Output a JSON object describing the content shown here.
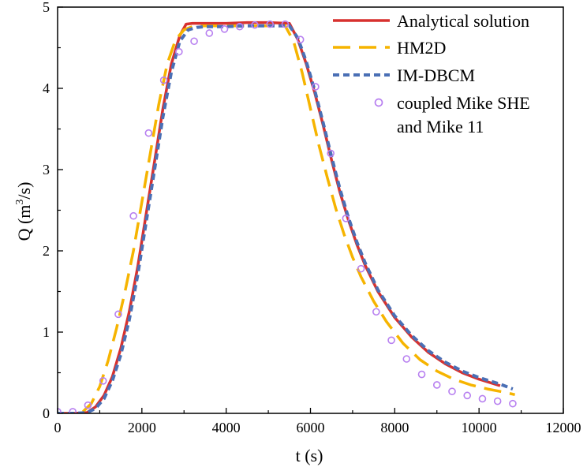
{
  "chart_data": {
    "type": "line",
    "xlabel": "t (s)",
    "ylabel_parts": {
      "base": "Q (m",
      "sup": "3",
      "tail": "/s)"
    },
    "xlim": [
      0,
      12000
    ],
    "ylim": [
      0,
      5
    ],
    "xticks": [
      0,
      2000,
      4000,
      6000,
      8000,
      10000,
      12000
    ],
    "yticks": [
      0,
      1,
      2,
      3,
      4,
      5
    ],
    "xtick_labels": [
      "0",
      "2000",
      "4000",
      "6000",
      "8000",
      "10000",
      "12000"
    ],
    "ytick_labels": [
      "0",
      "1",
      "2",
      "3",
      "4",
      "5"
    ],
    "grid": false,
    "legend_position": "top-right",
    "series": [
      {
        "name": "Analytical solution",
        "style": "solid",
        "color": "#d7312f",
        "x": [
          0,
          400,
          700,
          900,
          1100,
          1300,
          1500,
          1700,
          1900,
          2100,
          2300,
          2500,
          2700,
          2900,
          3050,
          3200,
          3500,
          4000,
          4500,
          5000,
          5500,
          5700,
          5900,
          6100,
          6300,
          6500,
          6700,
          6900,
          7100,
          7300,
          7600,
          8000,
          8400,
          8800,
          9200,
          9600,
          10000,
          10500
        ],
        "y": [
          0,
          0,
          0.01,
          0.08,
          0.22,
          0.45,
          0.8,
          1.25,
          1.8,
          2.45,
          3.1,
          3.75,
          4.3,
          4.65,
          4.79,
          4.8,
          4.8,
          4.8,
          4.81,
          4.81,
          4.8,
          4.6,
          4.3,
          3.95,
          3.55,
          3.12,
          2.72,
          2.38,
          2.08,
          1.82,
          1.5,
          1.18,
          0.94,
          0.75,
          0.61,
          0.5,
          0.42,
          0.34
        ]
      },
      {
        "name": "HM2D",
        "style": "dashed-long",
        "color": "#f6b400",
        "x": [
          600,
          800,
          1000,
          1200,
          1400,
          1600,
          1800,
          2000,
          2200,
          2400,
          2600,
          2800,
          3000,
          3200,
          3500,
          4000,
          4500,
          5000,
          5400,
          5600,
          5800,
          6000,
          6200,
          6400,
          6600,
          6800,
          7000,
          7200,
          7500,
          7800,
          8200,
          8600,
          9000,
          9400,
          9800,
          10200,
          10600,
          10850
        ],
        "y": [
          0.02,
          0.12,
          0.33,
          0.65,
          1.05,
          1.5,
          2.0,
          2.6,
          3.2,
          3.8,
          4.3,
          4.6,
          4.72,
          4.76,
          4.77,
          4.77,
          4.77,
          4.77,
          4.77,
          4.58,
          4.2,
          3.75,
          3.3,
          2.9,
          2.52,
          2.2,
          1.92,
          1.68,
          1.38,
          1.13,
          0.86,
          0.66,
          0.52,
          0.42,
          0.35,
          0.3,
          0.26,
          0.23
        ]
      },
      {
        "name": "IM-DBCM",
        "style": "dashed-short",
        "color": "#4a6fb5",
        "x": [
          0,
          400,
          700,
          900,
          1100,
          1300,
          1500,
          1700,
          1900,
          2100,
          2300,
          2500,
          2700,
          2900,
          3100,
          3300,
          3500,
          4000,
          4500,
          5000,
          5500,
          5700,
          5900,
          6100,
          6300,
          6500,
          6700,
          6900,
          7100,
          7300,
          7600,
          8000,
          8400,
          8800,
          9200,
          9600,
          10000,
          10500,
          10800
        ],
        "y": [
          0,
          0,
          0.01,
          0.06,
          0.18,
          0.4,
          0.72,
          1.15,
          1.7,
          2.35,
          3.0,
          3.65,
          4.2,
          4.58,
          4.72,
          4.75,
          4.76,
          4.76,
          4.77,
          4.77,
          4.77,
          4.62,
          4.33,
          3.98,
          3.58,
          3.16,
          2.76,
          2.41,
          2.11,
          1.85,
          1.52,
          1.2,
          0.96,
          0.77,
          0.63,
          0.52,
          0.44,
          0.36,
          0.3
        ]
      },
      {
        "name": "coupled Mike SHE and Mike 11",
        "style": "markers",
        "color": "#b77ff0",
        "legend_lines": [
          "coupled Mike SHE",
          "and Mike 11"
        ],
        "x": [
          0,
          360,
          720,
          1080,
          1440,
          1800,
          2160,
          2520,
          2880,
          3240,
          3600,
          3960,
          4320,
          4680,
          5040,
          5400,
          5760,
          6120,
          6480,
          6840,
          7200,
          7560,
          7920,
          8280,
          8640,
          9000,
          9360,
          9720,
          10080,
          10440,
          10800
        ],
        "y": [
          0.02,
          0.02,
          0.1,
          0.4,
          1.22,
          2.43,
          3.45,
          4.1,
          4.45,
          4.58,
          4.68,
          4.73,
          4.76,
          4.78,
          4.79,
          4.79,
          4.6,
          4.02,
          3.2,
          2.4,
          1.78,
          1.25,
          0.9,
          0.67,
          0.48,
          0.35,
          0.27,
          0.22,
          0.18,
          0.15,
          0.12
        ]
      }
    ]
  }
}
